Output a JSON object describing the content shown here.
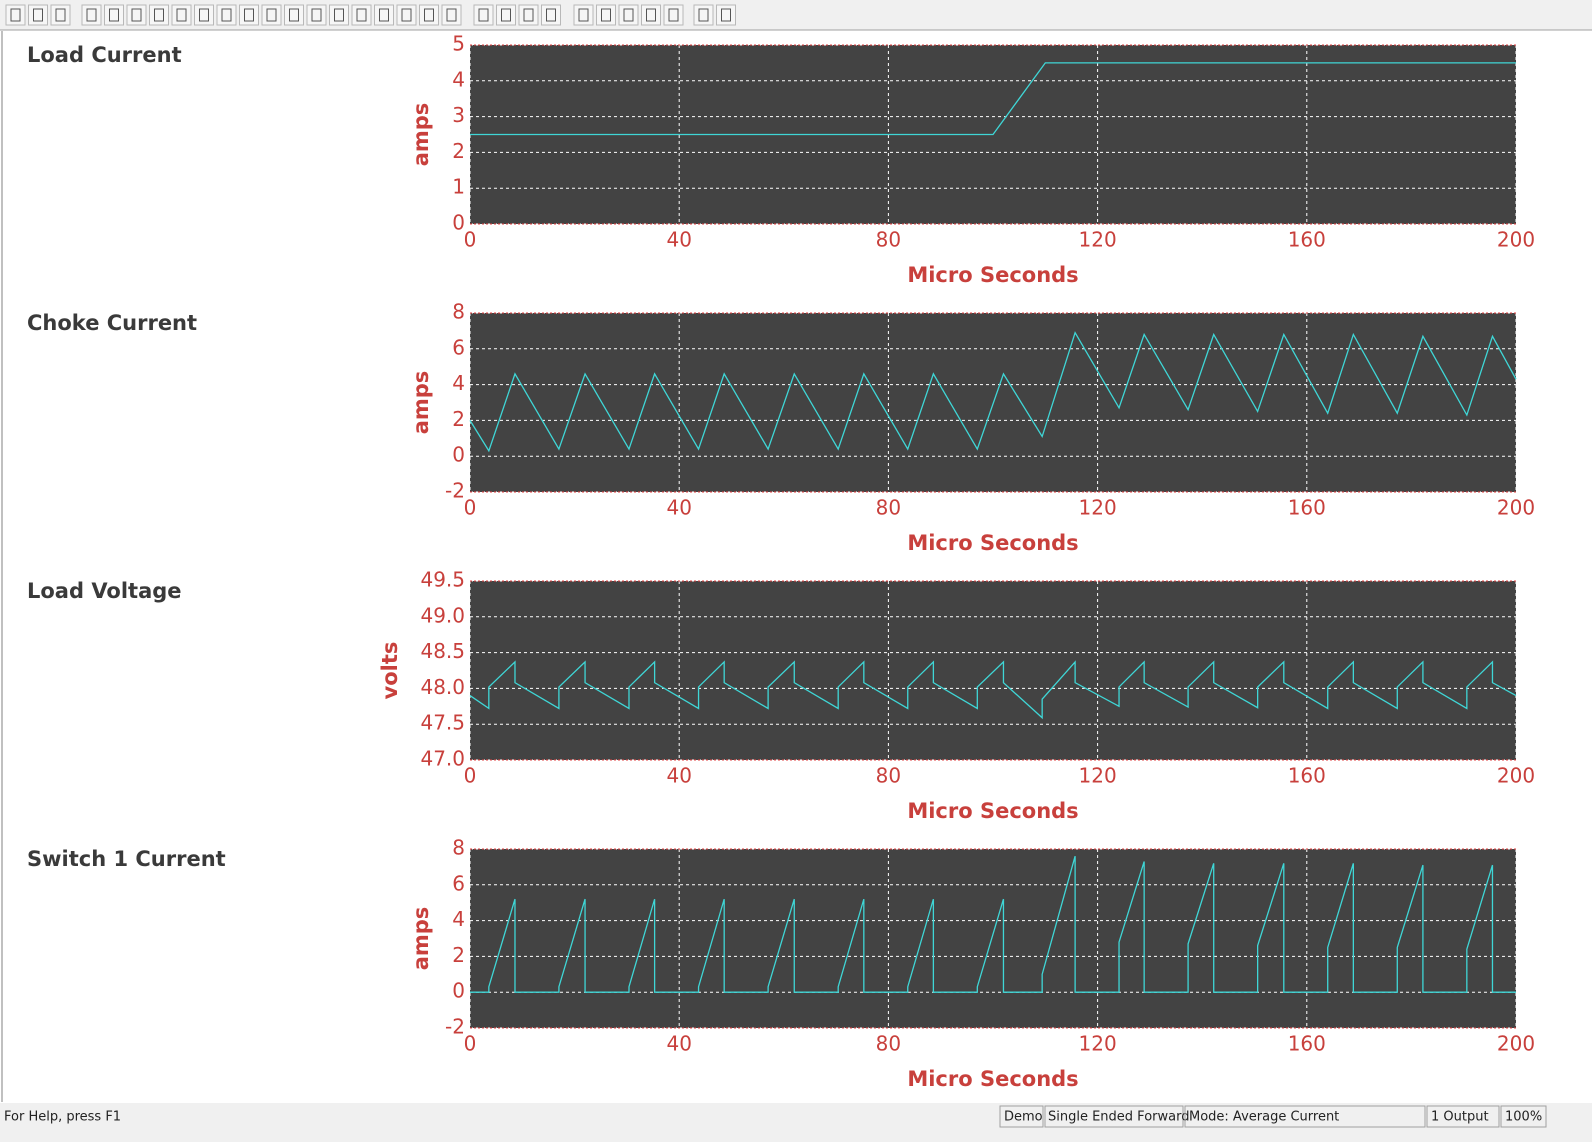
{
  "chart_data": [
    {
      "type": "line",
      "title": "Load Current",
      "ylabel": "amps",
      "xlabel": "Micro Seconds",
      "color": "#3fd6d6",
      "x": [
        0,
        100,
        110,
        200
      ],
      "values": [
        2.5,
        2.5,
        4.5,
        4.5
      ],
      "xlim": [
        0,
        200
      ],
      "xticks": [
        0,
        40,
        80,
        120,
        160,
        200
      ],
      "ylim": [
        0,
        5
      ],
      "yticks": [
        0,
        1,
        2,
        3,
        4,
        5
      ],
      "grid": true
    },
    {
      "type": "line",
      "title": "Choke Current",
      "ylabel": "amps",
      "xlabel": "Micro Seconds",
      "color": "#3fd6d6",
      "x": [
        0,
        3.6,
        8.6,
        17.0,
        22.0,
        30.4,
        35.3,
        43.7,
        48.6,
        57.0,
        62.0,
        70.4,
        75.3,
        83.7,
        88.6,
        97.0,
        102.0,
        109.4,
        115.7,
        124.1,
        128.9,
        137.3,
        142.2,
        150.6,
        155.6,
        164.0,
        168.9,
        177.3,
        182.2,
        190.6,
        195.5,
        200
      ],
      "values": [
        2.0,
        0.3,
        4.6,
        0.4,
        4.6,
        0.4,
        4.6,
        0.4,
        4.6,
        0.4,
        4.6,
        0.4,
        4.6,
        0.4,
        4.6,
        0.4,
        4.6,
        1.1,
        6.9,
        2.7,
        6.8,
        2.6,
        6.8,
        2.5,
        6.8,
        2.4,
        6.8,
        2.4,
        6.7,
        2.3,
        6.7,
        4.3
      ],
      "xlim": [
        0,
        200
      ],
      "xticks": [
        0,
        40,
        80,
        120,
        160,
        200
      ],
      "ylim": [
        -2,
        8
      ],
      "yticks": [
        -2,
        0,
        2,
        4,
        6,
        8
      ],
      "grid": true
    },
    {
      "type": "line",
      "title": "Load Voltage",
      "ylabel": "volts",
      "xlabel": "Micro Seconds",
      "color": "#3fd6d6",
      "x": [
        0,
        3.6,
        3.6,
        8.6,
        8.6,
        17.0,
        17.0,
        22.0,
        22.0,
        30.4,
        30.4,
        35.3,
        35.3,
        43.7,
        43.7,
        48.6,
        48.6,
        57.0,
        57.0,
        62.0,
        62.0,
        70.4,
        70.4,
        75.3,
        75.3,
        83.7,
        83.7,
        88.6,
        88.6,
        97.0,
        97.0,
        102.0,
        102.0,
        109.4,
        109.4,
        115.7,
        115.7,
        124.1,
        124.1,
        128.9,
        128.9,
        137.3,
        137.3,
        142.2,
        142.2,
        150.6,
        150.6,
        155.6,
        155.6,
        164.0,
        164.0,
        168.9,
        168.9,
        177.3,
        177.3,
        182.2,
        182.2,
        190.6,
        190.6,
        195.5,
        195.5,
        200
      ],
      "values": [
        47.9,
        47.72,
        48.02,
        48.37,
        48.08,
        47.72,
        48.02,
        48.37,
        48.08,
        47.72,
        48.02,
        48.37,
        48.08,
        47.72,
        48.02,
        48.37,
        48.08,
        47.72,
        48.02,
        48.37,
        48.08,
        47.72,
        48.02,
        48.37,
        48.08,
        47.72,
        48.02,
        48.37,
        48.08,
        47.72,
        48.02,
        48.37,
        48.08,
        47.59,
        47.85,
        48.37,
        48.08,
        47.75,
        48.02,
        48.37,
        48.08,
        47.74,
        48.02,
        48.37,
        48.08,
        47.73,
        48.02,
        48.37,
        48.08,
        47.72,
        48.02,
        48.37,
        48.08,
        47.72,
        48.02,
        48.37,
        48.08,
        47.72,
        48.02,
        48.37,
        48.08,
        47.9
      ],
      "xlim": [
        0,
        200
      ],
      "xticks": [
        0,
        40,
        80,
        120,
        160,
        200
      ],
      "ylim": [
        47,
        49.5
      ],
      "yticks": [
        {
          "value": 47,
          "label": "47.0"
        },
        47.5,
        {
          "value": 48,
          "label": "48.0"
        },
        48.5,
        {
          "value": 49,
          "label": "49.0"
        },
        49.5
      ],
      "grid": true
    },
    {
      "type": "line",
      "title": "Switch 1 Current",
      "ylabel": "amps",
      "xlabel": "Micro Seconds",
      "color": "#3fd6d6",
      "x": [
        0,
        3.6,
        3.6,
        8.6,
        8.6,
        17.0,
        17.0,
        22.0,
        22.0,
        30.4,
        30.4,
        35.3,
        35.3,
        43.7,
        43.7,
        48.6,
        48.6,
        57.0,
        57.0,
        62.0,
        62.0,
        70.4,
        70.4,
        75.3,
        75.3,
        83.7,
        83.7,
        88.6,
        88.6,
        97.0,
        97.0,
        102.0,
        102.0,
        109.4,
        109.4,
        115.7,
        115.7,
        124.1,
        124.1,
        128.9,
        128.9,
        137.3,
        137.3,
        142.2,
        142.2,
        150.6,
        150.6,
        155.6,
        155.6,
        164.0,
        164.0,
        168.9,
        168.9,
        177.3,
        177.3,
        182.2,
        182.2,
        190.6,
        190.6,
        195.5,
        195.5,
        200
      ],
      "values": [
        0,
        0,
        0.3,
        5.2,
        0,
        0,
        0.3,
        5.2,
        0,
        0,
        0.3,
        5.2,
        0,
        0,
        0.3,
        5.2,
        0,
        0,
        0.3,
        5.2,
        0,
        0,
        0.3,
        5.2,
        0,
        0,
        0.3,
        5.2,
        0,
        0,
        0.3,
        5.2,
        0,
        0,
        1.0,
        7.6,
        0,
        0,
        2.8,
        7.3,
        0,
        0,
        2.7,
        7.2,
        0,
        0,
        2.6,
        7.2,
        0,
        0,
        2.5,
        7.2,
        0,
        0,
        2.5,
        7.1,
        0,
        0,
        2.4,
        7.1,
        0,
        0
      ],
      "xlim": [
        0,
        200
      ],
      "xticks": [
        0,
        40,
        80,
        120,
        160,
        200
      ],
      "ylim": [
        -2,
        8
      ],
      "yticks": [
        -2,
        0,
        2,
        4,
        6,
        8
      ],
      "grid": true
    }
  ],
  "status_bar": {
    "help": "For Help, press F1",
    "license": "Demo",
    "topology": "Single Ended Forward",
    "mode": "Mode: Average Current",
    "outputs": "1 Output",
    "zoom": "100%"
  }
}
